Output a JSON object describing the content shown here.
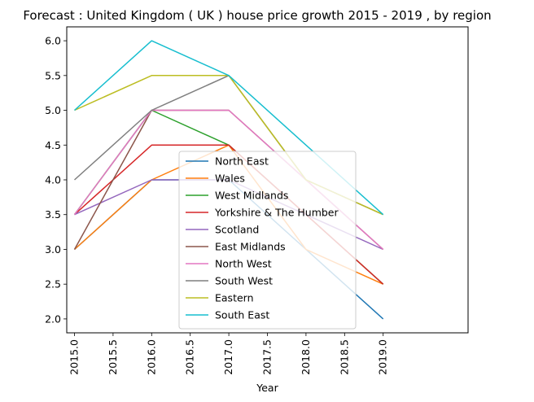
{
  "chart_data": {
    "type": "line",
    "title": "Forecast : United Kingdom ( UK ) house price growth 2015 - 2019 , by region",
    "xlabel": "Year",
    "ylabel": "",
    "x": [
      2015,
      2016,
      2017,
      2018,
      2019
    ],
    "xlim": [
      2014.9,
      2020.1
    ],
    "ylim": [
      1.8,
      6.2
    ],
    "xticks": [
      "2015.0",
      "2015.5",
      "2016.0",
      "2016.5",
      "2017.0",
      "2017.5",
      "2018.0",
      "2018.5",
      "2019.0"
    ],
    "yticks": [
      "2.0",
      "2.5",
      "3.0",
      "3.5",
      "4.0",
      "4.5",
      "5.0",
      "5.5",
      "6.0"
    ],
    "grid": false,
    "legend_position": "center",
    "series": [
      {
        "name": "North East",
        "color": "#1f77b4",
        "values": [
          3.0,
          4.0,
          4.0,
          3.0,
          2.0
        ]
      },
      {
        "name": "Wales",
        "color": "#ff7f0e",
        "values": [
          3.0,
          4.0,
          4.5,
          3.0,
          2.5
        ]
      },
      {
        "name": "West Midlands",
        "color": "#2ca02c",
        "values": [
          3.5,
          5.0,
          4.5,
          3.5,
          2.5
        ]
      },
      {
        "name": "Yorkshire & The Humber",
        "color": "#d62728",
        "values": [
          3.5,
          4.5,
          4.5,
          3.5,
          2.5
        ]
      },
      {
        "name": "Scotland",
        "color": "#9467bd",
        "values": [
          3.5,
          4.0,
          4.0,
          3.5,
          3.0
        ]
      },
      {
        "name": "East Midlands",
        "color": "#8c564b",
        "values": [
          3.0,
          5.0,
          5.0,
          4.0,
          3.0
        ]
      },
      {
        "name": "North West",
        "color": "#e377c2",
        "values": [
          3.5,
          5.0,
          5.0,
          4.0,
          3.0
        ]
      },
      {
        "name": "South West",
        "color": "#7f7f7f",
        "values": [
          4.0,
          5.0,
          5.5,
          4.0,
          3.5
        ]
      },
      {
        "name": "Eastern",
        "color": "#bcbd22",
        "values": [
          5.0,
          5.5,
          5.5,
          4.0,
          3.5
        ]
      },
      {
        "name": "South East",
        "color": "#17becf",
        "values": [
          5.0,
          6.0,
          5.5,
          4.5,
          3.5
        ]
      }
    ]
  }
}
